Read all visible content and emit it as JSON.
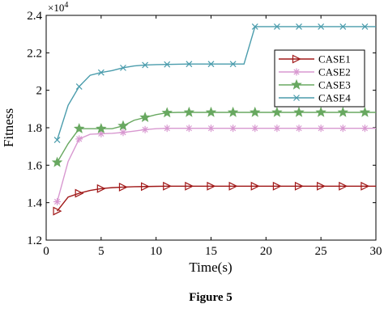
{
  "chart_data": {
    "type": "line",
    "title": "",
    "xlabel": "Time(s)",
    "ylabel": "Fitness",
    "y_exponent_label": "×10",
    "y_exponent_power": "4",
    "xlim": [
      0,
      30
    ],
    "ylim": [
      1.2,
      2.4
    ],
    "x_ticks": [
      0,
      5,
      10,
      15,
      20,
      25,
      30
    ],
    "y_ticks": [
      1.2,
      1.4,
      1.6,
      1.8,
      2.0,
      2.2,
      2.4
    ],
    "x_tick_labels": [
      "0",
      "5",
      "10",
      "15",
      "20",
      "25",
      "30"
    ],
    "y_tick_labels": [
      "1.2",
      "1.4",
      "1.6",
      "1.8",
      "2",
      "2.2",
      "2.4"
    ],
    "grid": false,
    "legend_position": "top-right",
    "x": [
      1,
      2,
      3,
      4,
      5,
      6,
      7,
      8,
      9,
      10,
      11,
      12,
      13,
      14,
      15,
      16,
      17,
      18,
      19,
      20,
      21,
      22,
      23,
      24,
      25,
      26,
      27,
      28,
      29,
      30
    ],
    "series": [
      {
        "name": "CASE1",
        "color": "#a01818",
        "marker": "triangle-right",
        "values": [
          1.355,
          1.43,
          1.45,
          1.465,
          1.475,
          1.48,
          1.483,
          1.485,
          1.486,
          1.487,
          1.488,
          1.488,
          1.488,
          1.488,
          1.488,
          1.488,
          1.488,
          1.488,
          1.488,
          1.488,
          1.488,
          1.488,
          1.488,
          1.488,
          1.488,
          1.488,
          1.488,
          1.488,
          1.488,
          1.488
        ]
      },
      {
        "name": "CASE2",
        "color": "#d898d0",
        "marker": "asterisk",
        "values": [
          1.405,
          1.62,
          1.74,
          1.765,
          1.768,
          1.77,
          1.775,
          1.782,
          1.79,
          1.795,
          1.797,
          1.797,
          1.797,
          1.797,
          1.797,
          1.797,
          1.797,
          1.797,
          1.797,
          1.797,
          1.797,
          1.797,
          1.797,
          1.797,
          1.797,
          1.797,
          1.797,
          1.797,
          1.797,
          1.797
        ]
      },
      {
        "name": "CASE3",
        "color": "#68a860",
        "marker": "star",
        "values": [
          1.615,
          1.715,
          1.795,
          1.795,
          1.795,
          1.795,
          1.81,
          1.84,
          1.855,
          1.87,
          1.88,
          1.882,
          1.882,
          1.882,
          1.882,
          1.882,
          1.882,
          1.882,
          1.882,
          1.882,
          1.882,
          1.882,
          1.882,
          1.882,
          1.882,
          1.882,
          1.882,
          1.882,
          1.882,
          1.882
        ]
      },
      {
        "name": "CASE4",
        "color": "#4a9cac",
        "marker": "x",
        "values": [
          1.735,
          1.92,
          2.02,
          2.08,
          2.095,
          2.105,
          2.12,
          2.13,
          2.135,
          2.137,
          2.138,
          2.139,
          2.14,
          2.14,
          2.14,
          2.14,
          2.14,
          2.14,
          2.34,
          2.34,
          2.34,
          2.34,
          2.34,
          2.34,
          2.34,
          2.34,
          2.34,
          2.34,
          2.34,
          2.34
        ]
      }
    ],
    "marker_every": 2
  },
  "caption": "Figure 5"
}
